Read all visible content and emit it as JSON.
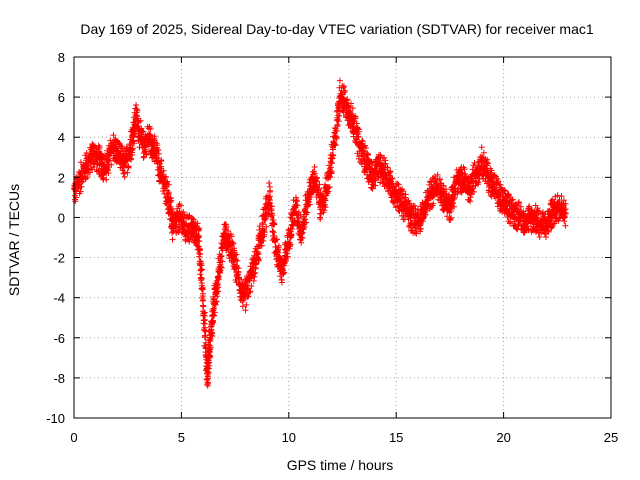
{
  "chart_data": {
    "type": "scatter",
    "title": "Day 169 of 2025, Sidereal Day-to-day VTEC variation (SDTVAR) for receiver mac1",
    "xlabel": "GPS time / hours",
    "ylabel": "SDTVAR / TECUs",
    "xlim": [
      0,
      25
    ],
    "ylim": [
      -10,
      8
    ],
    "xticks": [
      0,
      5,
      10,
      15,
      20,
      25
    ],
    "yticks": [
      -10,
      -8,
      -6,
      -4,
      -2,
      0,
      2,
      4,
      6,
      8
    ],
    "xtick_labels": [
      "0",
      "5",
      "10",
      "15",
      "20",
      "25"
    ],
    "ytick_labels": [
      "-10",
      "-8",
      "-6",
      "-4",
      "-2",
      "0",
      "2",
      "4",
      "6",
      "8"
    ],
    "grid": true,
    "marker": "+",
    "color": "#ff0000",
    "series": [
      {
        "name": "mac1",
        "x": [
          0.0,
          0.3,
          0.6,
          0.9,
          1.2,
          1.5,
          1.8,
          2.1,
          2.4,
          2.7,
          2.9,
          3.2,
          3.5,
          3.8,
          4.1,
          4.4,
          4.6,
          4.9,
          5.2,
          5.5,
          5.8,
          6.0,
          6.2,
          6.3,
          6.5,
          6.7,
          7.0,
          7.3,
          7.6,
          7.9,
          8.2,
          8.5,
          8.8,
          9.1,
          9.4,
          9.7,
          10.0,
          10.3,
          10.6,
          10.9,
          11.2,
          11.5,
          11.8,
          12.1,
          12.4,
          12.7,
          13.0,
          13.3,
          13.6,
          13.9,
          14.2,
          14.5,
          14.8,
          15.1,
          15.4,
          15.7,
          16.0,
          16.3,
          16.6,
          16.9,
          17.2,
          17.5,
          17.8,
          18.1,
          18.4,
          18.7,
          19.0,
          19.3,
          19.6,
          19.9,
          20.2,
          20.5,
          20.8,
          21.1,
          21.4,
          21.7,
          22.0,
          22.3,
          22.6,
          22.9
        ],
        "y": [
          1.2,
          2.0,
          2.6,
          3.2,
          2.8,
          2.4,
          3.6,
          3.0,
          2.6,
          3.8,
          5.0,
          3.6,
          4.0,
          3.2,
          2.0,
          1.0,
          -0.5,
          0.0,
          -0.6,
          -0.5,
          -1.0,
          -4.0,
          -8.0,
          -6.5,
          -4.5,
          -3.0,
          -0.8,
          -1.5,
          -2.8,
          -4.2,
          -3.0,
          -2.0,
          -0.5,
          1.0,
          -1.5,
          -2.8,
          -1.0,
          0.5,
          -0.8,
          1.0,
          2.0,
          0.5,
          1.5,
          3.5,
          6.2,
          5.5,
          4.8,
          3.5,
          2.8,
          2.0,
          2.5,
          2.2,
          1.5,
          1.0,
          0.5,
          0.0,
          -0.2,
          0.3,
          1.2,
          1.5,
          1.0,
          0.5,
          1.8,
          2.0,
          1.2,
          2.2,
          2.8,
          2.0,
          1.5,
          0.8,
          0.5,
          0.2,
          0.0,
          -0.1,
          0.0,
          -0.3,
          -0.4,
          0.3,
          0.6,
          0.2
        ]
      }
    ]
  }
}
